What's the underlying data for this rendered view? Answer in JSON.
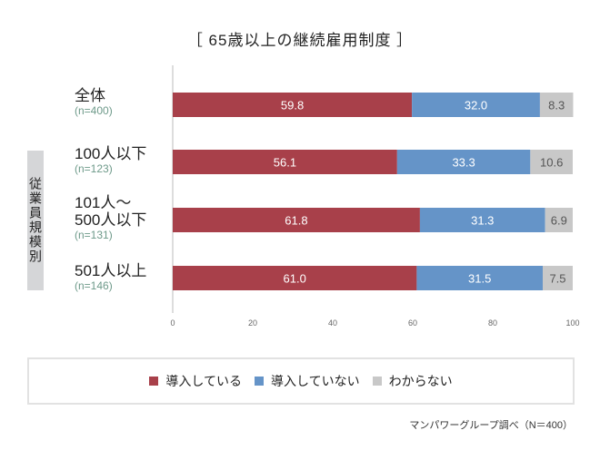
{
  "chart_data": {
    "type": "bar",
    "orientation": "horizontal",
    "stacked": true,
    "title": "［ 65歳以上の継続雇用制度 ］",
    "group_label": "従業員規模別",
    "categories": [
      {
        "label": "全体",
        "n": "(n=400)"
      },
      {
        "label": "100人以下",
        "n": "(n=123)"
      },
      {
        "label": "101人～\n500人以下",
        "n": "(n=131)"
      },
      {
        "label": "501人以上",
        "n": "(n=146)"
      }
    ],
    "series": [
      {
        "name": "導入している",
        "color": "#a8404a",
        "values": [
          59.8,
          56.1,
          61.8,
          61.0
        ]
      },
      {
        "name": "導入していない",
        "color": "#6594c8",
        "values": [
          32.0,
          33.3,
          31.3,
          31.5
        ]
      },
      {
        "name": "わからない",
        "color": "#c8c8c8",
        "values": [
          8.3,
          10.6,
          6.9,
          7.5
        ]
      }
    ],
    "xlim": [
      0,
      100
    ],
    "xticks": [
      "0",
      "20",
      "40",
      "60",
      "80",
      "100"
    ],
    "grid": false,
    "legend_position": "bottom",
    "source": "マンパワーグループ調べ（N＝400）"
  }
}
